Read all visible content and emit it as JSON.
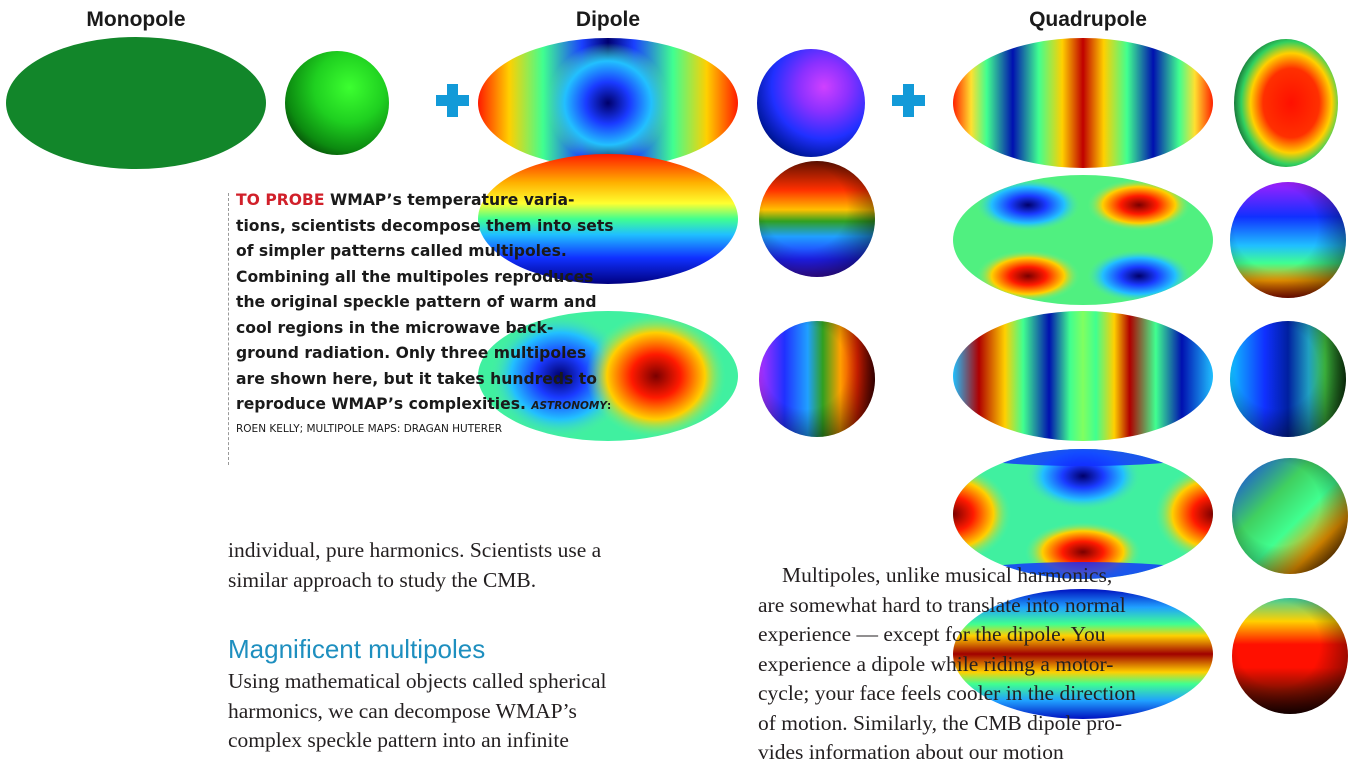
{
  "headers": {
    "monopole": "Monopole",
    "dipole": "Dipole",
    "quadrupole": "Quadrupole"
  },
  "colors": {
    "plus": "#129ad8",
    "lead": "#d1202a",
    "subhead": "#1e8fbf"
  },
  "caption": {
    "lead": "TO PROBE",
    "lines": [
      " WMAP’s temperature varia-",
      "tions, scientists decompose them into sets",
      "of simpler patterns called multipoles.",
      "Combining all the multipoles reproduces",
      "the original speckle pattern of warm and",
      "cool regions in the microwave back-",
      "ground radiation. Only three multipoles",
      "are shown here, but it takes hundreds to",
      "reproduce WMAP’s complexities."
    ],
    "credit_mag": "ASTRONOMY",
    "credit_1": ":",
    "credit_2": "ROEN KELLY; MULTIPOLE MAPS: DRAGAN HUTERER"
  },
  "body": {
    "col1_top": [
      "individual, pure harmonics. Scientists use a",
      "similar approach to study the CMB."
    ],
    "subhead": "Magnificent multipoles",
    "col1_bottom": [
      "Using mathematical objects called spherical",
      "harmonics, we can decompose WMAP’s",
      "complex speckle pattern into an infinite"
    ],
    "col2": [
      "Multipoles, unlike musical harmonics,",
      "are somewhat hard to translate into normal",
      "experience — except for the dipole. You",
      "experience a dipole while riding a motor-",
      "cycle; your face feels cooler in the direction",
      "of motion. Similarly, the CMB dipole pro-",
      "vides information about our motion"
    ]
  }
}
